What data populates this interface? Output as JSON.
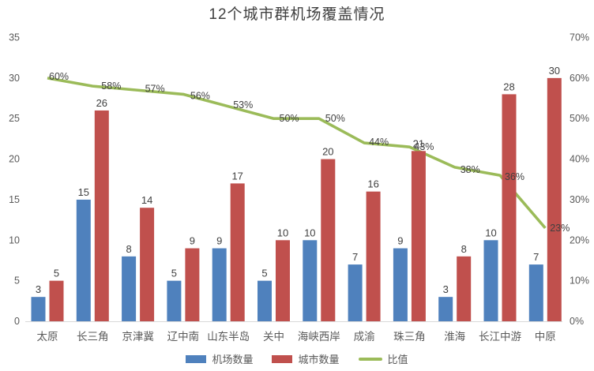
{
  "chart_data": {
    "type": "combo (bar + line)",
    "title": "12个城市群机场覆盖情况",
    "categories": [
      "太原",
      "长三角",
      "京津冀",
      "辽中南",
      "山东半岛",
      "关中",
      "海峡西岸",
      "成渝",
      "珠三角",
      "淮海",
      "长江中游",
      "中原"
    ],
    "series": [
      {
        "name": "机场数量",
        "type": "bar",
        "axis": "left",
        "color": "#4F81BD",
        "values": [
          3,
          15,
          8,
          5,
          9,
          5,
          10,
          7,
          9,
          3,
          10,
          7
        ]
      },
      {
        "name": "城市数量",
        "type": "bar",
        "axis": "left",
        "color": "#C0504D",
        "values": [
          5,
          26,
          14,
          9,
          17,
          10,
          20,
          16,
          21,
          8,
          28,
          30
        ]
      },
      {
        "name": "比值",
        "type": "line",
        "axis": "right",
        "color": "#9BBB59",
        "values_percent": [
          60,
          58,
          57,
          56,
          53,
          50,
          50,
          44,
          43,
          38,
          36,
          23
        ],
        "labels": [
          "60%",
          "58%",
          "57%",
          "56%",
          "53%",
          "50%",
          "50%",
          "44%",
          "43%",
          "38%",
          "36%",
          "23%"
        ]
      }
    ],
    "left_axis": {
      "min": 0,
      "max": 35,
      "step": 5,
      "ticks": [
        "0",
        "5",
        "10",
        "15",
        "20",
        "25",
        "30",
        "35"
      ]
    },
    "right_axis": {
      "min": 0,
      "max": 70,
      "step": 10,
      "ticks": [
        "0%",
        "10%",
        "20%",
        "30%",
        "40%",
        "50%",
        "60%",
        "70%"
      ]
    },
    "gridlines": false,
    "legend_position": "bottom"
  },
  "colors": {
    "title_text": "#404040",
    "data_label_text": "#404040",
    "axis_text": "#595959",
    "axis_line": "#D9D9D9",
    "background": "#FFFFFF"
  }
}
